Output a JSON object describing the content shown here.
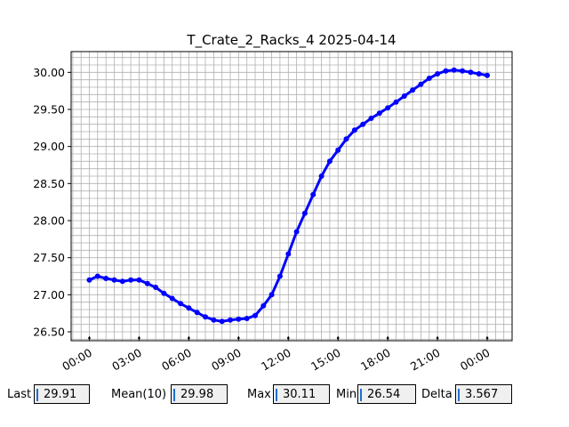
{
  "chart_data": {
    "type": "scatter",
    "title": "T_Crate_2_Racks_4 2025-04-14",
    "xlabel": "",
    "ylabel": "",
    "x_unit": "hours since 00:00 of 2025-04-14",
    "xlim": [
      -1.1,
      25.5
    ],
    "ylim": [
      26.38,
      30.28
    ],
    "x_ticks": [
      0,
      3,
      6,
      9,
      12,
      15,
      18,
      21,
      24
    ],
    "x_tick_labels": [
      "00:00",
      "03:00",
      "06:00",
      "09:00",
      "12:00",
      "15:00",
      "18:00",
      "21:00",
      "00:00"
    ],
    "y_ticks": [
      26.5,
      27.0,
      27.5,
      28.0,
      28.5,
      29.0,
      29.5,
      30.0
    ],
    "y_tick_labels": [
      "26.50",
      "27.00",
      "27.50",
      "28.00",
      "28.50",
      "29.00",
      "29.50",
      "30.00"
    ],
    "grid": true,
    "series": [
      {
        "name": "",
        "color": "#0000ff",
        "marker": "circle",
        "x": [
          0.0,
          0.5,
          1.0,
          1.5,
          2.0,
          2.5,
          3.0,
          3.5,
          4.0,
          4.5,
          5.0,
          5.5,
          6.0,
          6.5,
          7.0,
          7.5,
          8.0,
          8.5,
          9.0,
          9.5,
          10.0,
          10.5,
          11.0,
          11.5,
          12.0,
          12.5,
          13.0,
          13.5,
          14.0,
          14.5,
          15.0,
          15.5,
          16.0,
          16.5,
          17.0,
          17.5,
          18.0,
          18.5,
          19.0,
          19.5,
          20.0,
          20.5,
          21.0,
          21.5,
          22.0,
          22.5,
          23.0,
          23.5,
          24.0
        ],
        "y": [
          27.2,
          27.25,
          27.22,
          27.2,
          27.18,
          27.2,
          27.2,
          27.15,
          27.1,
          27.02,
          26.95,
          26.88,
          26.82,
          26.76,
          26.7,
          26.66,
          26.64,
          26.66,
          26.67,
          26.68,
          26.72,
          26.85,
          27.0,
          27.25,
          27.55,
          27.85,
          28.1,
          28.35,
          28.6,
          28.8,
          28.95,
          29.1,
          29.22,
          29.3,
          29.38,
          29.45,
          29.52,
          29.6,
          29.68,
          29.76,
          29.84,
          29.92,
          29.98,
          30.02,
          30.03,
          30.02,
          30.0,
          29.98,
          29.96
        ]
      }
    ]
  },
  "stats": {
    "last_label": "Last",
    "last_value": "29.91",
    "mean_label": "Mean(10)",
    "mean_value": "29.98",
    "max_label": "Max",
    "max_value": "30.11",
    "min_label": "Min",
    "min_value": "26.54",
    "delta_label": "Delta",
    "delta_value": "3.567"
  }
}
